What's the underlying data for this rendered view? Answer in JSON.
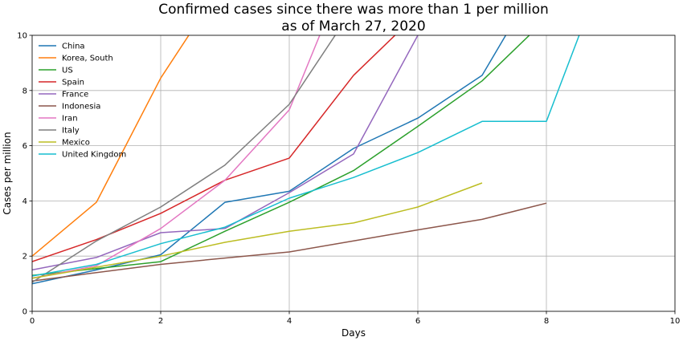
{
  "chart_data": {
    "type": "line",
    "title": "Confirmed cases since there was more than 1 per million",
    "subtitle": "as of March 27, 2020",
    "xlabel": "Days",
    "ylabel": "Cases per million",
    "xlim": [
      0,
      10
    ],
    "ylim": [
      0,
      10
    ],
    "xticks": [
      0,
      2,
      4,
      6,
      8,
      10
    ],
    "yticks": [
      0,
      2,
      4,
      6,
      8,
      10
    ],
    "grid": true,
    "legend_position": "top-left",
    "series": [
      {
        "name": "China",
        "color": "#1f77b4",
        "x": [
          0,
          1,
          2,
          3,
          4,
          5,
          6,
          7,
          8
        ],
        "y": [
          1.0,
          1.5,
          2.05,
          3.95,
          4.35,
          5.9,
          7.0,
          8.55,
          12.5
        ]
      },
      {
        "name": "Korea, South",
        "color": "#ff7f0e",
        "x": [
          0,
          1,
          2,
          3
        ],
        "y": [
          2.0,
          3.95,
          8.45,
          12.0
        ]
      },
      {
        "name": "US",
        "color": "#2ca02c",
        "x": [
          0,
          1,
          2,
          3,
          4,
          5,
          6,
          7,
          8
        ],
        "y": [
          1.3,
          1.55,
          1.8,
          2.9,
          3.95,
          5.1,
          6.7,
          8.35,
          10.6
        ]
      },
      {
        "name": "Spain",
        "color": "#d62728",
        "x": [
          0,
          1,
          2,
          3,
          4,
          5,
          6
        ],
        "y": [
          1.8,
          2.6,
          3.55,
          4.75,
          5.55,
          8.55,
          10.8
        ]
      },
      {
        "name": "France",
        "color": "#9467bd",
        "x": [
          0,
          1,
          2,
          3,
          4,
          5,
          6,
          7
        ],
        "y": [
          1.5,
          1.95,
          2.85,
          3.0,
          4.3,
          5.7,
          10.0,
          14.0
        ]
      },
      {
        "name": "Indonesia",
        "color": "#8c564b",
        "x": [
          0,
          1,
          2,
          3,
          4,
          5,
          6,
          7,
          8
        ],
        "y": [
          1.1,
          1.4,
          1.7,
          1.93,
          2.15,
          2.55,
          2.95,
          3.33,
          3.92
        ]
      },
      {
        "name": "Iran",
        "color": "#e377c2",
        "x": [
          0,
          1,
          2,
          3,
          4,
          5
        ],
        "y": [
          1.2,
          1.65,
          3.0,
          4.75,
          7.3,
          13.0
        ]
      },
      {
        "name": "Italy",
        "color": "#7f7f7f",
        "x": [
          0,
          1,
          2,
          3,
          4,
          5
        ],
        "y": [
          1.05,
          2.55,
          3.78,
          5.3,
          7.5,
          11.0
        ]
      },
      {
        "name": "Mexico",
        "color": "#bcbd22",
        "x": [
          0,
          1,
          2,
          3,
          4,
          5,
          6,
          7
        ],
        "y": [
          1.2,
          1.6,
          2.0,
          2.5,
          2.9,
          3.2,
          3.78,
          4.65
        ]
      },
      {
        "name": "United Kingdom",
        "color": "#17becf",
        "x": [
          0,
          1,
          2,
          3,
          4,
          5,
          6,
          7,
          8,
          9
        ],
        "y": [
          1.28,
          1.7,
          2.45,
          3.05,
          4.1,
          4.85,
          5.75,
          6.88,
          6.88,
          13.0
        ]
      }
    ]
  }
}
